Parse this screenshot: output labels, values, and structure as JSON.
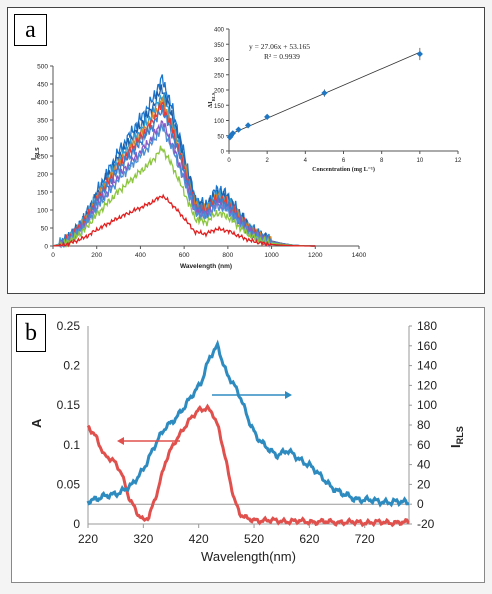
{
  "panels": {
    "a": "a",
    "b": "b"
  },
  "chart_data": [
    {
      "id": "a-main",
      "type": "line",
      "title": "",
      "xlabel": "Wavelength (nm)",
      "ylabel": "I_RLS",
      "xlim": [
        0,
        1400
      ],
      "ylim": [
        0,
        500
      ],
      "xticks": [
        0,
        200,
        400,
        600,
        800,
        1000,
        1200,
        1400
      ],
      "yticks": [
        0,
        50,
        100,
        150,
        200,
        250,
        300,
        350,
        400,
        450,
        500
      ],
      "shape_x": [
        0,
        50,
        100,
        150,
        200,
        250,
        300,
        350,
        400,
        450,
        500,
        550,
        600,
        650,
        700,
        750,
        800,
        850,
        900,
        950,
        1000,
        1050,
        1100,
        1150,
        1200
      ],
      "shape_y": [
        0,
        0.02,
        0.09,
        0.18,
        0.32,
        0.44,
        0.56,
        0.66,
        0.76,
        0.86,
        1.0,
        0.8,
        0.55,
        0.28,
        0.24,
        0.34,
        0.3,
        0.2,
        0.11,
        0.06,
        0.03,
        0.015,
        0.005,
        0.001,
        0
      ],
      "series": [
        {
          "color": "#1874cd",
          "peak": 465
        },
        {
          "color": "#1f5fa8",
          "peak": 440
        },
        {
          "color": "#2e9fd6",
          "peak": 420
        },
        {
          "color": "#d08a2a",
          "peak": 405
        },
        {
          "color": "#e83a3a",
          "peak": 395
        },
        {
          "color": "#3a7fd0",
          "peak": 380
        },
        {
          "color": "#8a59c4",
          "peak": 345
        },
        {
          "color": "#4b8ed6",
          "peak": 330
        },
        {
          "color": "#8cc63f",
          "peak": 272
        },
        {
          "color": "#e02020",
          "peak": 140
        }
      ]
    },
    {
      "id": "a-inset",
      "type": "scatter",
      "xlabel": "Concentration (mg L⁻¹)",
      "ylabel": "ΔI_RLS",
      "xlim": [
        0,
        12
      ],
      "ylim": [
        0,
        400
      ],
      "xticks": [
        0,
        2,
        4,
        6,
        8,
        10,
        12
      ],
      "yticks": [
        0,
        50,
        100,
        150,
        200,
        250,
        300,
        350,
        400
      ],
      "equation": "y = 27.06x + 53.165",
      "r_squared": "R² = 0.9939",
      "points": [
        {
          "x": 0.05,
          "y": 45,
          "err": 4
        },
        {
          "x": 0.1,
          "y": 50,
          "err": 4
        },
        {
          "x": 0.2,
          "y": 58,
          "err": 4
        },
        {
          "x": 0.5,
          "y": 70,
          "err": 5
        },
        {
          "x": 1,
          "y": 84,
          "err": 6
        },
        {
          "x": 2,
          "y": 112,
          "err": 8
        },
        {
          "x": 5,
          "y": 190,
          "err": 12
        },
        {
          "x": 10,
          "y": 318,
          "err": 20
        }
      ],
      "fit": {
        "slope": 27.06,
        "intercept": 53.165
      }
    },
    {
      "id": "b",
      "type": "line",
      "xlabel": "Wavelength(nm)",
      "ylabel_left": "A",
      "ylabel_right": "I_RLS",
      "xlim": [
        220,
        800
      ],
      "ylim_left": [
        0,
        0.25
      ],
      "ylim_right": [
        -20,
        180
      ],
      "xticks": [
        220,
        320,
        420,
        520,
        620,
        720
      ],
      "yticks_left": [
        "0",
        "0.05",
        "0.1",
        "0.15",
        "0.2",
        "0.25"
      ],
      "yticks_right": [
        "-20",
        "0",
        "20",
        "40",
        "60",
        "80",
        "100",
        "120",
        "140",
        "160",
        "180"
      ],
      "series": [
        {
          "axis": "left",
          "color": "#e0504d",
          "x": [
            220,
            235,
            250,
            265,
            280,
            295,
            310,
            320,
            330,
            345,
            360,
            375,
            390,
            405,
            420,
            435,
            445,
            455,
            465,
            475,
            485,
            495,
            505,
            520,
            560,
            620,
            700,
            800
          ],
          "y": [
            0.123,
            0.11,
            0.086,
            0.08,
            0.066,
            0.032,
            0.012,
            0.004,
            0.01,
            0.04,
            0.078,
            0.102,
            0.118,
            0.132,
            0.144,
            0.147,
            0.14,
            0.122,
            0.094,
            0.06,
            0.03,
            0.012,
            0.007,
            0.005,
            0.004,
            0.003,
            0.002,
            0.002
          ]
        },
        {
          "axis": "right",
          "color": "#2e8bc0",
          "x": [
            220,
            240,
            260,
            280,
            300,
            320,
            340,
            360,
            380,
            395,
            410,
            425,
            440,
            455,
            460,
            470,
            480,
            495,
            510,
            525,
            540,
            560,
            580,
            600,
            620,
            640,
            660,
            680,
            700,
            740,
            780,
            800
          ],
          "y": [
            4,
            6,
            9,
            13,
            19,
            36,
            58,
            78,
            88,
            98,
            112,
            124,
            148,
            160,
            150,
            133,
            124,
            108,
            86,
            68,
            58,
            50,
            54,
            46,
            40,
            28,
            18,
            10,
            6,
            3,
            2,
            2
          ]
        }
      ],
      "arrows": [
        {
          "from": [
            168,
            260
          ],
          "to": [
            105,
            260
          ],
          "color": "#e0504d"
        },
        {
          "from": [
            200,
            393
          ],
          "to": [
            280,
            393
          ],
          "color": "#2e8bc0"
        }
      ]
    }
  ]
}
